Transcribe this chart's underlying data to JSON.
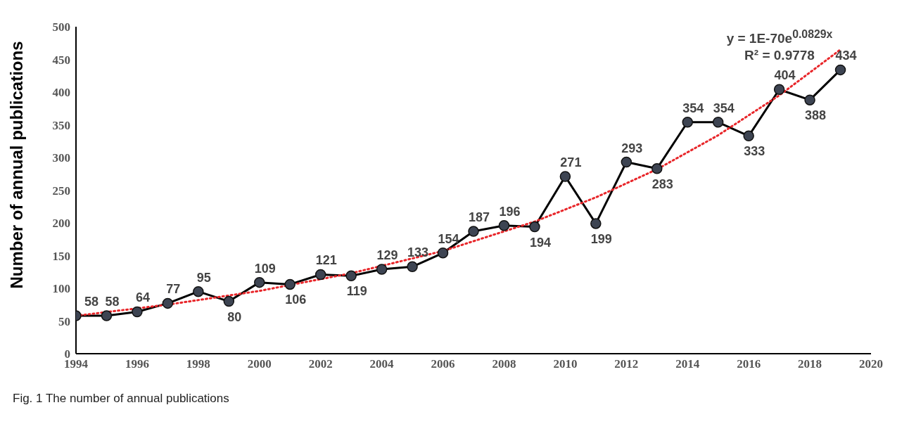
{
  "chart_data": {
    "type": "line",
    "ylabel": "Number of annual publications",
    "annotations": [
      "y = 1E-70e$^{0.0829x}$",
      "R² = 0.9778",
      "Fig. 1 The number of annual publications"
    ],
    "x": [
      1994,
      1995,
      1996,
      1997,
      1998,
      1999,
      2000,
      2001,
      2002,
      2003,
      2004,
      2005,
      2006,
      2007,
      2008,
      2009,
      2010,
      2011,
      2012,
      2013,
      2014,
      2015,
      2016,
      2017,
      2018,
      2019
    ],
    "series": [
      {
        "color": "#000000",
        "marker": "circle",
        "data_labels": true,
        "values": [
          58,
          58,
          64,
          77,
          95,
          80,
          109,
          106,
          121,
          119,
          129,
          133,
          154,
          187,
          196,
          194,
          271,
          199,
          293,
          283,
          354,
          354,
          333,
          404,
          388,
          434
        ]
      },
      {
        "type": "line",
        "color": "#e8262a",
        "marker": "none",
        "line_style": "dotted",
        "x": [
          1994,
          1997,
          2000,
          2003,
          2006,
          2009,
          2011,
          2013,
          2015,
          2017,
          2019
        ],
        "values": [
          58,
          75,
          96,
          123,
          157,
          202,
          239,
          282,
          334,
          395,
          465
        ]
      }
    ],
    "xlim": [
      1994,
      2020
    ],
    "xticks": [
      1994,
      1996,
      1998,
      2000,
      2002,
      2004,
      2006,
      2008,
      2010,
      2012,
      2014,
      2016,
      2018,
      2020
    ],
    "ylim": [
      0,
      500
    ],
    "yticks": [
      0,
      50,
      100,
      150,
      200,
      250,
      300,
      350,
      400,
      450,
      500
    ],
    "legend": false
  }
}
